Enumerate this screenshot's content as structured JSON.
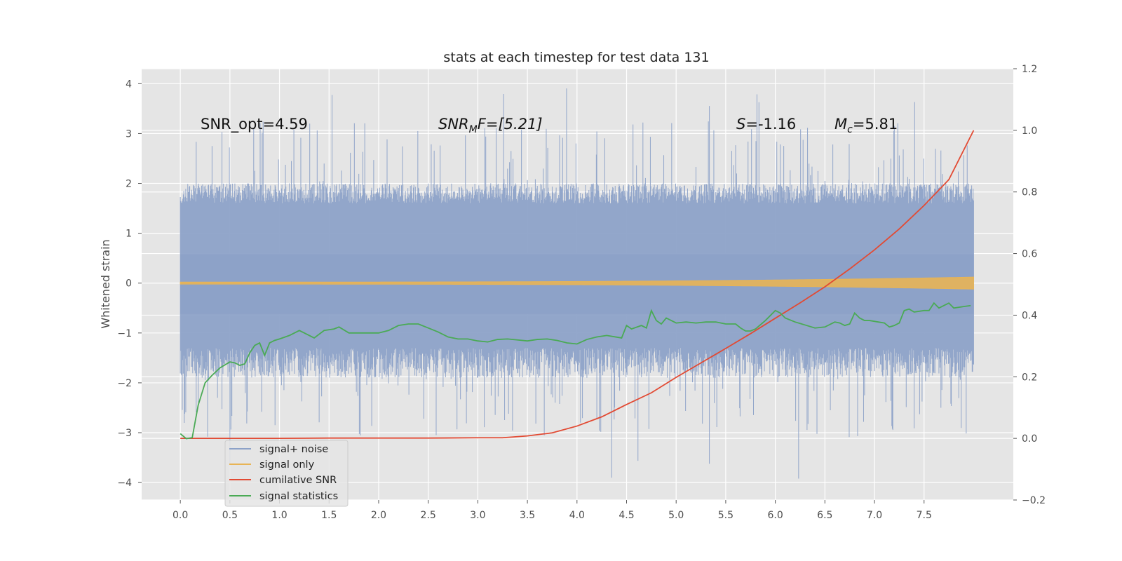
{
  "chart_data": {
    "type": "line",
    "title": "stats at each timestep for test data 131",
    "ylabel": "Whitened strain",
    "xlabel": "",
    "ylabel_right": "",
    "xlim": [
      -0.39,
      8.4
    ],
    "ylim": [
      -4.35,
      4.3
    ],
    "ylim_right": [
      -0.2,
      1.2
    ],
    "grid": true,
    "x_ticks": [
      "0.0",
      "0.5",
      "1.0",
      "1.5",
      "2.0",
      "2.5",
      "3.0",
      "3.5",
      "4.0",
      "4.5",
      "5.0",
      "5.5",
      "6.0",
      "6.5",
      "7.0",
      "7.5"
    ],
    "y_ticks": [
      "4",
      "3",
      "2",
      "1",
      "0",
      "−1",
      "−2",
      "−3",
      "−4"
    ],
    "y_right_ticks": [
      "1.2",
      "1.0",
      "0.8",
      "0.6",
      "0.4",
      "0.2",
      "0.0",
      "−0.2"
    ],
    "legend_placement": "lower-left",
    "annotations": {
      "snr_opt": "SNR_opt=4.59",
      "snr_mf_sym": "SNR",
      "snr_mf_sub": "M",
      "snr_mf_rest": "F=[5.21]",
      "s_sym": "S",
      "s_rest": "=-1.16",
      "mc_sym": "M",
      "mc_sub": "c",
      "mc_rest": "=5.81"
    },
    "colors": {
      "signal_noise": "#8da2c8",
      "signal_only": "#e8b455",
      "cumulative_snr": "#e24a33",
      "signal_statistics": "#4aaa55",
      "axes_bg": "#e5e5e5",
      "grid": "#ffffff"
    },
    "series": [
      {
        "name": "signal+ noise",
        "axis": "left",
        "kind": "noise_band",
        "x_range": [
          0.0,
          8.0
        ],
        "typical_range": [
          -1.3,
          1.6
        ],
        "extremes": [
          -3.95,
          3.95
        ]
      },
      {
        "name": "signal only",
        "axis": "left",
        "kind": "chirp",
        "x_range": [
          0.0,
          8.0
        ],
        "amplitude_start": 0.02,
        "amplitude_end": 0.12
      },
      {
        "name": "cumilative SNR",
        "axis": "right",
        "x": [
          0.0,
          0.5,
          1.0,
          1.5,
          2.0,
          2.5,
          3.0,
          3.25,
          3.5,
          3.75,
          4.0,
          4.25,
          4.5,
          4.75,
          5.0,
          5.25,
          5.5,
          5.75,
          6.0,
          6.25,
          6.5,
          6.75,
          7.0,
          7.25,
          7.5,
          7.75,
          8.0
        ],
        "values": [
          0.0,
          0.0,
          0.0,
          0.001,
          0.001,
          0.001,
          0.002,
          0.002,
          0.008,
          0.018,
          0.04,
          0.07,
          0.11,
          0.148,
          0.198,
          0.245,
          0.292,
          0.34,
          0.39,
          0.44,
          0.492,
          0.55,
          0.612,
          0.68,
          0.756,
          0.84,
          1.0
        ]
      },
      {
        "name": "signal statistics",
        "axis": "left",
        "x": [
          0.0,
          0.06,
          0.12,
          0.18,
          0.25,
          0.32,
          0.4,
          0.5,
          0.55,
          0.6,
          0.65,
          0.7,
          0.75,
          0.8,
          0.85,
          0.9,
          0.95,
          1.0,
          1.1,
          1.2,
          1.25,
          1.35,
          1.45,
          1.55,
          1.6,
          1.7,
          1.8,
          1.9,
          2.0,
          2.1,
          2.2,
          2.3,
          2.4,
          2.5,
          2.6,
          2.7,
          2.8,
          2.9,
          3.0,
          3.1,
          3.2,
          3.3,
          3.4,
          3.5,
          3.6,
          3.7,
          3.8,
          3.9,
          4.0,
          4.1,
          4.2,
          4.3,
          4.45,
          4.5,
          4.55,
          4.65,
          4.7,
          4.75,
          4.8,
          4.85,
          4.9,
          5.0,
          5.1,
          5.2,
          5.3,
          5.4,
          5.5,
          5.6,
          5.65,
          5.7,
          5.75,
          5.8,
          5.9,
          6.0,
          6.05,
          6.1,
          6.2,
          6.3,
          6.4,
          6.5,
          6.6,
          6.65,
          6.7,
          6.75,
          6.8,
          6.85,
          6.9,
          6.95,
          7.1,
          7.15,
          7.2,
          7.25,
          7.3,
          7.35,
          7.4,
          7.5,
          7.55,
          7.6,
          7.65,
          7.7,
          7.75,
          7.8,
          7.9,
          7.97
        ],
        "values": [
          -3.02,
          -3.12,
          -3.1,
          -2.45,
          -2.0,
          -1.85,
          -1.7,
          -1.58,
          -1.6,
          -1.65,
          -1.62,
          -1.4,
          -1.25,
          -1.2,
          -1.45,
          -1.2,
          -1.15,
          -1.12,
          -1.05,
          -0.95,
          -1.0,
          -1.1,
          -0.95,
          -0.92,
          -0.88,
          -1.0,
          -1.0,
          -1.0,
          -1.0,
          -0.95,
          -0.85,
          -0.82,
          -0.82,
          -0.9,
          -0.98,
          -1.08,
          -1.12,
          -1.12,
          -1.16,
          -1.18,
          -1.13,
          -1.12,
          -1.14,
          -1.16,
          -1.13,
          -1.12,
          -1.15,
          -1.2,
          -1.22,
          -1.13,
          -1.08,
          -1.05,
          -1.1,
          -0.85,
          -0.92,
          -0.85,
          -0.9,
          -0.55,
          -0.75,
          -0.82,
          -0.7,
          -0.8,
          -0.78,
          -0.8,
          -0.78,
          -0.78,
          -0.82,
          -0.82,
          -0.9,
          -0.96,
          -0.96,
          -0.92,
          -0.75,
          -0.55,
          -0.6,
          -0.7,
          -0.78,
          -0.84,
          -0.9,
          -0.88,
          -0.78,
          -0.8,
          -0.85,
          -0.82,
          -0.6,
          -0.7,
          -0.75,
          -0.75,
          -0.8,
          -0.88,
          -0.85,
          -0.8,
          -0.55,
          -0.52,
          -0.58,
          -0.55,
          -0.55,
          -0.4,
          -0.5,
          -0.45,
          -0.4,
          -0.5,
          -0.47,
          -0.45
        ]
      }
    ]
  }
}
